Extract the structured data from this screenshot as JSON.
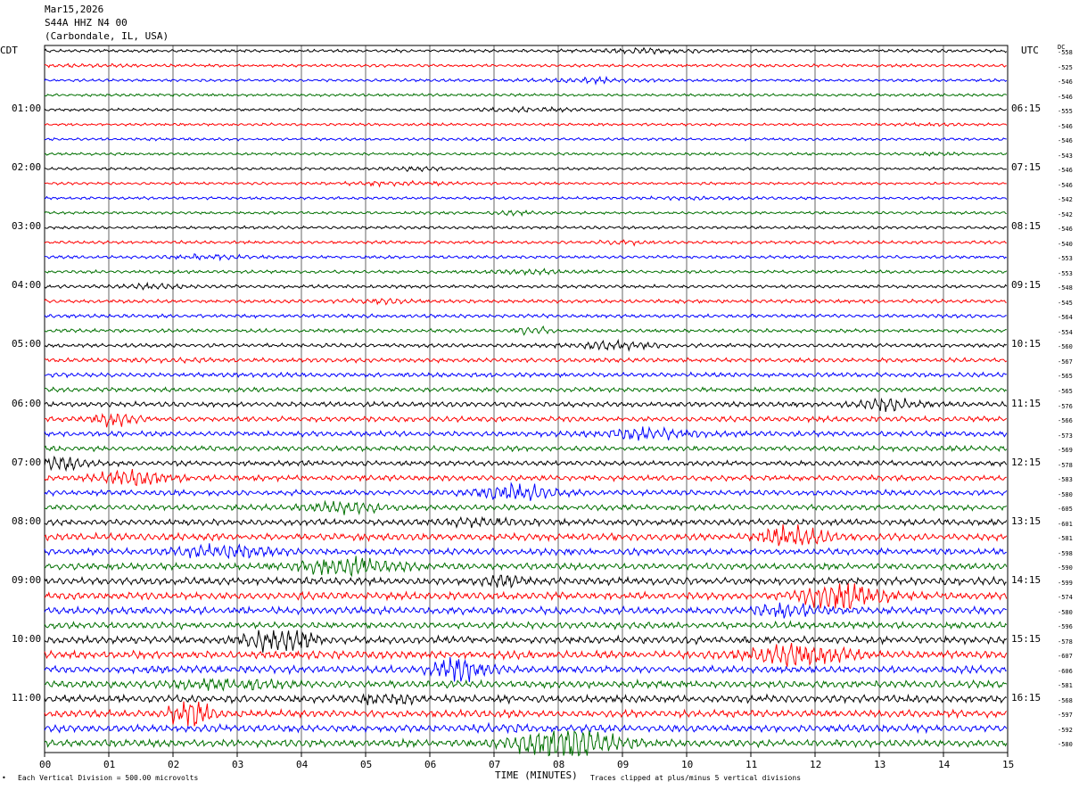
{
  "header": {
    "date": "Mar15,2026",
    "station": "S44A HHZ N4 00",
    "location": "(Carbondale, IL, USA)"
  },
  "left_zone": "CDT",
  "right_zone": "UTC",
  "dc_label": "DC",
  "footer": {
    "vertical_division": "Each Vertical Division =  500.00 microvolts",
    "xlabel": "TIME (MINUTES)",
    "clip_note": "Traces clipped at plus/minus 5 vertical divisions"
  },
  "colors": {
    "trace_cycle": [
      "#000000",
      "#ff0000",
      "#0000ff",
      "#007000"
    ],
    "grid": "#000000",
    "background": "#ffffff"
  },
  "chart_data": {
    "type": "helicorder",
    "rows_per_hour": 4,
    "minutes_per_row": 15,
    "xlabel": "TIME (MINUTES)",
    "x_ticks": [
      "00",
      "01",
      "02",
      "03",
      "04",
      "05",
      "06",
      "07",
      "08",
      "09",
      "10",
      "11",
      "12",
      "13",
      "14",
      "15"
    ],
    "left_labels": [
      "01:00",
      "02:00",
      "03:00",
      "04:00",
      "05:00",
      "06:00",
      "07:00",
      "08:00",
      "09:00",
      "10:00",
      "11:00"
    ],
    "right_labels": [
      "06:15",
      "07:15",
      "08:15",
      "09:15",
      "10:15",
      "11:15",
      "12:15",
      "13:15",
      "14:15",
      "15:15",
      "16:15"
    ],
    "dc_offsets": [
      -558,
      -525,
      -546,
      -546,
      -555,
      -546,
      -546,
      -543,
      -546,
      -546,
      -542,
      -542,
      -546,
      -540,
      -553,
      -553,
      -548,
      -545,
      -564,
      -554,
      -560,
      -567,
      -565,
      -565,
      -576,
      -566,
      -573,
      -569,
      -578,
      -583,
      -580,
      -605,
      -601,
      -581,
      -598,
      -590,
      -599,
      -574,
      -580,
      -596,
      -578,
      -607,
      -606,
      -581,
      -568,
      -597,
      -592,
      -580
    ],
    "trace_activity": [
      0.5,
      0.5,
      0.45,
      0.45,
      0.45,
      0.45,
      0.45,
      0.45,
      0.45,
      0.45,
      0.45,
      0.45,
      0.5,
      0.5,
      0.5,
      0.5,
      0.55,
      0.6,
      0.6,
      0.6,
      0.65,
      0.7,
      0.75,
      0.75,
      0.85,
      0.85,
      0.85,
      0.85,
      0.85,
      0.9,
      0.9,
      0.9,
      1.0,
      1.15,
      1.05,
      1.05,
      1.2,
      1.2,
      1.15,
      1.1,
      1.2,
      1.25,
      1.2,
      1.2,
      1.25,
      1.2,
      1.2,
      1.2
    ]
  }
}
